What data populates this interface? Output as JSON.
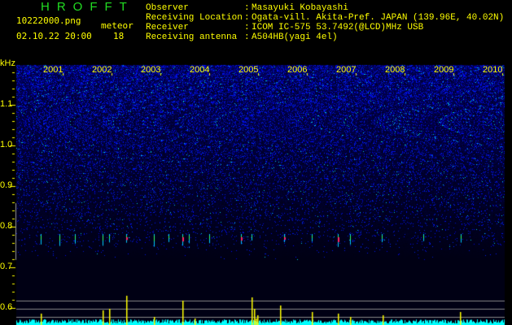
{
  "header": {
    "title": "HROFFT",
    "filename": "10222000.png",
    "datetime": "02.10.22 20:00",
    "meteor_label": "meteor",
    "meteor_count": "18"
  },
  "info": [
    {
      "label": "Observer",
      "value": "Masayuki Kobayashi"
    },
    {
      "label": "Receiving Location",
      "value": "Ogata-vill. Akita-Pref. JAPAN (139.96E, 40.02N)"
    },
    {
      "label": "Receiver",
      "value": "ICOM IC-575 53.7492(@LCD)MHz USB"
    },
    {
      "label": "Receiving antenna",
      "value": "A504HB(yagi 4el)"
    }
  ],
  "spectrogram": {
    "unit": "kHz",
    "freq_ticks": [
      "1.1",
      "1.0",
      "0.9",
      "0.8",
      "0.7",
      "0.6"
    ],
    "time_ticks": [
      "2001",
      "2002",
      "2003",
      "2004",
      "2005",
      "2006",
      "2007",
      "2008",
      "2009",
      "2010"
    ],
    "colors": {
      "noise": "#1a1aff",
      "meteor": "#ff2266",
      "trace": "#00ffff",
      "peak": "#ffff00",
      "ref_line": "#888888"
    }
  }
}
